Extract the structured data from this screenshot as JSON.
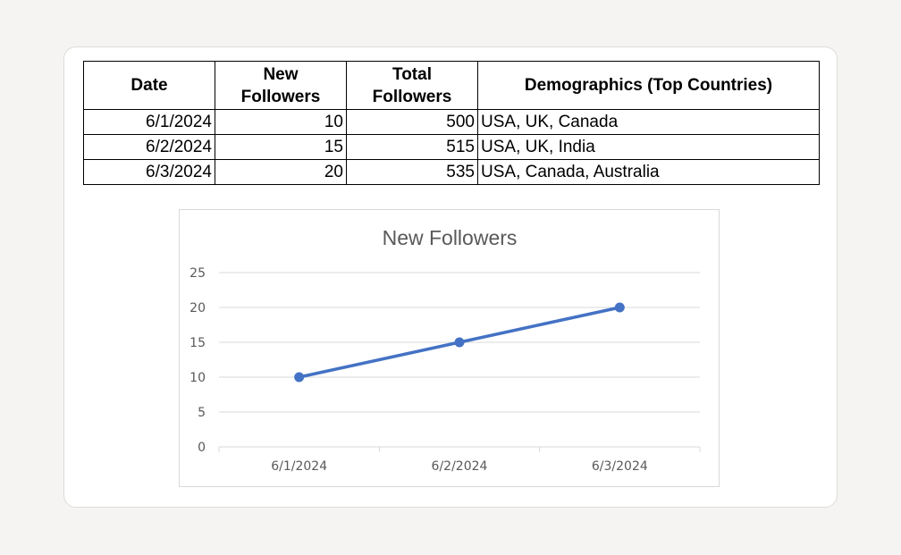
{
  "table": {
    "headers": [
      [
        "Date"
      ],
      [
        "New",
        "Followers"
      ],
      [
        "Total",
        "Followers"
      ],
      [
        "Demographics (Top Countries)"
      ]
    ],
    "rows": [
      [
        "6/1/2024",
        "10",
        "500",
        "USA, UK, Canada"
      ],
      [
        "6/2/2024",
        "15",
        "515",
        "USA, UK, India"
      ],
      [
        "6/3/2024",
        "20",
        "535",
        "USA, Canada, Australia"
      ]
    ]
  },
  "chart_data": {
    "type": "line",
    "title": "New Followers",
    "categories": [
      "6/1/2024",
      "6/2/2024",
      "6/3/2024"
    ],
    "series": [
      {
        "values": [
          10,
          15,
          20
        ],
        "color": "#4472c4"
      }
    ],
    "yticks": [
      "0",
      "5",
      "10",
      "15",
      "20",
      "25"
    ],
    "ylim": [
      0,
      25
    ],
    "xlabel": "",
    "ylabel": "",
    "grid": true,
    "legend": "none",
    "markers": true
  },
  "colors": {
    "line": "#4472c4",
    "gridline": "#d9d9d9",
    "axis_text": "#595959"
  }
}
